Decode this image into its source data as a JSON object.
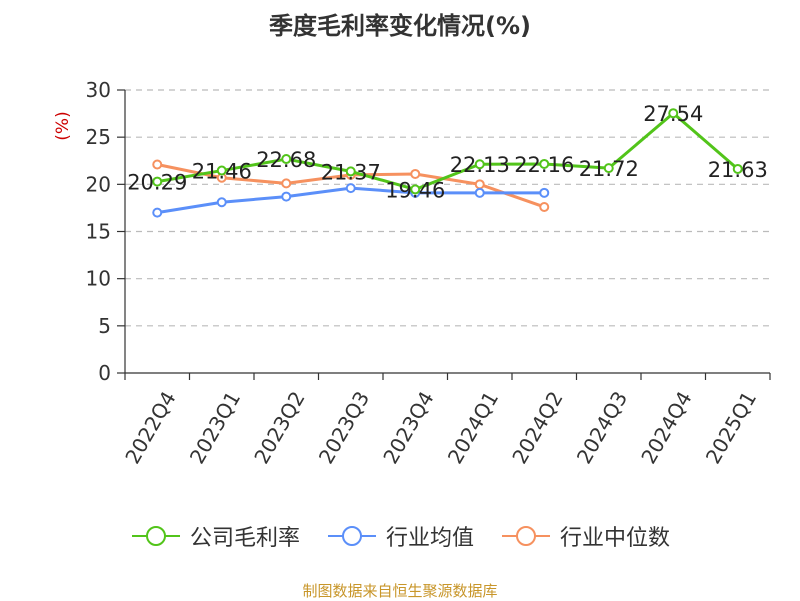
{
  "title": "季度毛利率变化情况(%)",
  "source": "制图数据来自恒生聚源数据库",
  "chart_data": {
    "type": "line",
    "title": "季度毛利率变化情况(%)",
    "ylabel": "(%)",
    "xlabel": "",
    "categories": [
      "2022Q4",
      "2023Q1",
      "2023Q2",
      "2023Q3",
      "2023Q4",
      "2024Q1",
      "2024Q2",
      "2024Q3",
      "2024Q4",
      "2025Q1"
    ],
    "ylim": [
      0,
      30
    ],
    "yticks": [
      0,
      5,
      10,
      15,
      20,
      25,
      30
    ],
    "grid": true,
    "legend_position": "bottom",
    "series": [
      {
        "name": "公司毛利率",
        "color": "#52c41a",
        "values": [
          20.29,
          21.46,
          22.68,
          21.37,
          19.46,
          22.13,
          22.16,
          21.72,
          27.54,
          21.63
        ],
        "show_labels": true
      },
      {
        "name": "行业均值",
        "color": "#5b8ff9",
        "values": [
          17.0,
          18.1,
          18.7,
          19.6,
          19.1,
          19.1,
          19.1,
          null,
          null,
          null
        ],
        "show_labels": false
      },
      {
        "name": "行业中位数",
        "color": "#f6915f",
        "values": [
          22.1,
          20.7,
          20.1,
          21.0,
          21.1,
          20.0,
          17.6,
          null,
          null,
          null
        ],
        "show_labels": false
      }
    ]
  }
}
